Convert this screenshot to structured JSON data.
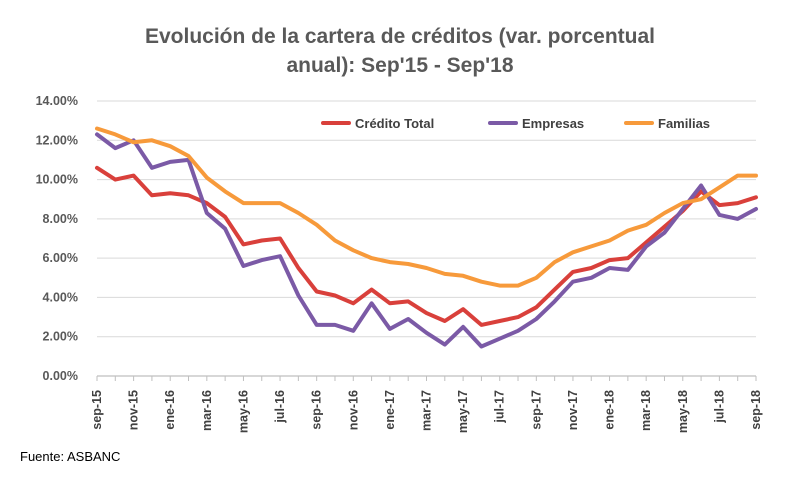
{
  "chart_data": {
    "type": "line",
    "title_lines": [
      "Evolución de la cartera de créditos (var. porcentual",
      "anual): Sep'15 - Sep'18"
    ],
    "xlabel": "",
    "ylabel": "",
    "ylim": [
      0,
      14
    ],
    "yticks": [
      "0.00%",
      "2.00%",
      "4.00%",
      "6.00%",
      "8.00%",
      "10.00%",
      "12.00%",
      "14.00%"
    ],
    "grid": true,
    "legend_position": "top-right",
    "x_labels": [
      "sep-15",
      "nov-15",
      "ene-16",
      "mar-16",
      "may-16",
      "jul-16",
      "sep-16",
      "nov-16",
      "ene-17",
      "mar-17",
      "may-17",
      "jul-17",
      "sep-17",
      "nov-17",
      "ene-18",
      "mar-18",
      "may-18",
      "jul-18",
      "sep-18"
    ],
    "x": [
      "sep-15",
      "oct-15",
      "nov-15",
      "dic-15",
      "ene-16",
      "feb-16",
      "mar-16",
      "abr-16",
      "may-16",
      "jun-16",
      "jul-16",
      "ago-16",
      "sep-16",
      "oct-16",
      "nov-16",
      "dic-16",
      "ene-17",
      "feb-17",
      "mar-17",
      "abr-17",
      "may-17",
      "jun-17",
      "jul-17",
      "ago-17",
      "sep-17",
      "oct-17",
      "nov-17",
      "dic-17",
      "ene-18",
      "feb-18",
      "mar-18",
      "abr-18",
      "may-18",
      "jun-18",
      "jul-18",
      "ago-18",
      "sep-18"
    ],
    "series": [
      {
        "name": "Crédito Total",
        "color": "#d9403b",
        "values": [
          10.6,
          10.0,
          10.2,
          9.2,
          9.3,
          9.2,
          8.8,
          8.1,
          6.7,
          6.9,
          7.0,
          5.5,
          4.3,
          4.1,
          3.7,
          4.4,
          3.7,
          3.8,
          3.2,
          2.8,
          3.4,
          2.6,
          2.8,
          3.0,
          3.5,
          4.4,
          5.3,
          5.5,
          5.9,
          6.0,
          6.8,
          7.6,
          8.4,
          9.4,
          8.7,
          8.8,
          9.1
        ]
      },
      {
        "name": "Empresas",
        "color": "#7b5aa6",
        "values": [
          12.3,
          11.6,
          12.0,
          10.6,
          10.9,
          11.0,
          8.3,
          7.5,
          5.6,
          5.9,
          6.1,
          4.1,
          2.6,
          2.6,
          2.3,
          3.7,
          2.4,
          2.9,
          2.2,
          1.6,
          2.5,
          1.5,
          1.9,
          2.3,
          2.9,
          3.8,
          4.8,
          5.0,
          5.5,
          5.4,
          6.6,
          7.3,
          8.5,
          9.7,
          8.2,
          8.0,
          8.5
        ]
      },
      {
        "name": "Familias",
        "color": "#f79a3b",
        "values": [
          12.6,
          12.3,
          11.9,
          12.0,
          11.7,
          11.2,
          10.1,
          9.4,
          8.8,
          8.8,
          8.8,
          8.3,
          7.7,
          6.9,
          6.4,
          6.0,
          5.8,
          5.7,
          5.5,
          5.2,
          5.1,
          4.8,
          4.6,
          4.6,
          5.0,
          5.8,
          6.3,
          6.6,
          6.9,
          7.4,
          7.7,
          8.3,
          8.8,
          9.0,
          9.6,
          10.2,
          10.2
        ]
      }
    ]
  },
  "source": "Fuente: ASBANC"
}
